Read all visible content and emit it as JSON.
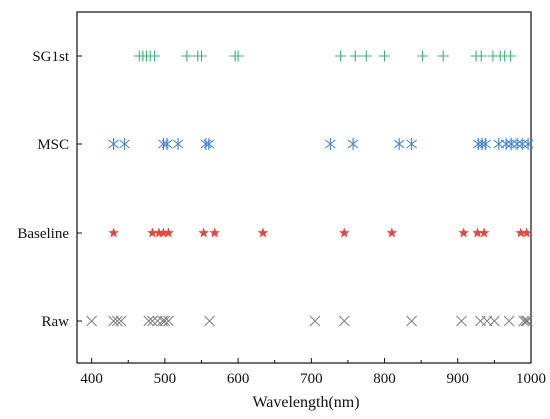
{
  "chart_data": {
    "type": "scatter",
    "title": "",
    "xlabel": "Wavelength(nm)",
    "ylabel": "",
    "xlim": [
      380,
      1000
    ],
    "x_ticks": [
      400,
      500,
      600,
      700,
      800,
      900,
      1000
    ],
    "grid": false,
    "legend": "none",
    "categories": [
      "Raw",
      "Baseline",
      "MSC",
      "SG1st"
    ],
    "series": [
      {
        "name": "Raw",
        "marker": "x",
        "color": "#808080",
        "x": [
          400,
          430,
          435,
          440,
          478,
          483,
          490,
          497,
          500,
          505,
          561,
          705,
          745,
          837,
          905,
          931,
          940,
          950,
          970,
          990,
          993,
          995
        ]
      },
      {
        "name": "Baseline",
        "marker": "star",
        "color": "#e8453c",
        "x": [
          430,
          483,
          492,
          498,
          505,
          553,
          568,
          634,
          745,
          810,
          908,
          927,
          936,
          986,
          994
        ]
      },
      {
        "name": "MSC",
        "marker": "asterisk",
        "color": "#3d86d9",
        "x": [
          430,
          445,
          498,
          503,
          518,
          556,
          560,
          726,
          757,
          820,
          837,
          928,
          933,
          938,
          956,
          966,
          973,
          981,
          988,
          996
        ]
      },
      {
        "name": "SG1st",
        "marker": "plus",
        "color": "#3cb371",
        "x": [
          465,
          470,
          475,
          480,
          486,
          530,
          545,
          550,
          596,
          600,
          740,
          760,
          775,
          800,
          852,
          880,
          925,
          932,
          948,
          958,
          964,
          972
        ]
      }
    ]
  }
}
